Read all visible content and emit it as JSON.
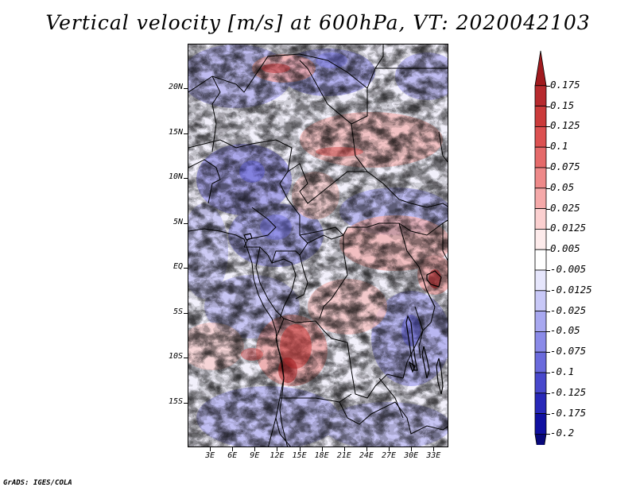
{
  "title": "Vertical velocity [m/s] at 600hPa, VT: 2020042103",
  "footer": "GrADS: IGES/COLA",
  "map": {
    "lon_range": [
      0,
      35
    ],
    "lat_range": [
      -20,
      25
    ],
    "lat_labels": [
      {
        "lat": 20,
        "text": "20N"
      },
      {
        "lat": 15,
        "text": "15N"
      },
      {
        "lat": 10,
        "text": "10N"
      },
      {
        "lat": 5,
        "text": "5N"
      },
      {
        "lat": 0,
        "text": "EQ"
      },
      {
        "lat": -5,
        "text": "5S"
      },
      {
        "lat": -10,
        "text": "10S"
      },
      {
        "lat": -15,
        "text": "15S"
      }
    ],
    "lon_labels": [
      {
        "lon": 3,
        "text": "3E"
      },
      {
        "lon": 6,
        "text": "6E"
      },
      {
        "lon": 9,
        "text": "9E"
      },
      {
        "lon": 12,
        "text": "12E"
      },
      {
        "lon": 15,
        "text": "15E"
      },
      {
        "lon": 18,
        "text": "18E"
      },
      {
        "lon": 21,
        "text": "21E"
      },
      {
        "lon": 24,
        "text": "24E"
      },
      {
        "lon": 27,
        "text": "27E"
      },
      {
        "lon": 30,
        "text": "30E"
      },
      {
        "lon": 33,
        "text": "33E"
      }
    ]
  },
  "colorbar": {
    "labels": [
      "0.175",
      "0.15",
      "0.125",
      "0.1",
      "0.075",
      "0.05",
      "0.025",
      "0.0125",
      "0.005",
      "-0.005",
      "-0.0125",
      "-0.025",
      "-0.05",
      "-0.075",
      "-0.1",
      "-0.125",
      "-0.175",
      "-0.2"
    ],
    "colors": [
      "#a01a1e",
      "#b72a2e",
      "#cb3b3b",
      "#dc5151",
      "#e56a6a",
      "#ee8989",
      "#f5a9a9",
      "#fbd0d0",
      "#fdebeb",
      "#ffffff",
      "#e6e6fc",
      "#c8c8f7",
      "#a8a8f0",
      "#8a8ae8",
      "#6a6adc",
      "#4848cc",
      "#2828b8",
      "#1010a0",
      "#08087a"
    ]
  }
}
